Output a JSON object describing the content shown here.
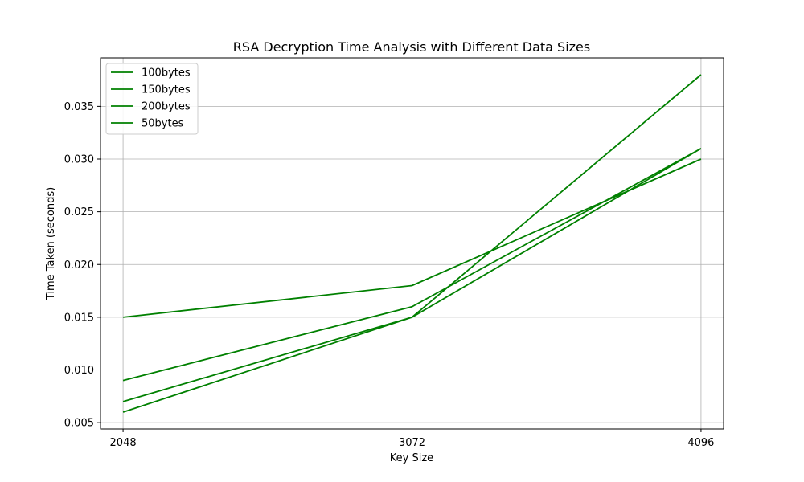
{
  "chart_data": {
    "type": "line",
    "title": "RSA Decryption Time Analysis with Different Data Sizes",
    "xlabel": "Key Size",
    "ylabel": "Time Taken (seconds)",
    "x": [
      2048,
      3072,
      4096
    ],
    "xticks": [
      "2048",
      "3072",
      "4096"
    ],
    "yticks": [
      0.005,
      0.01,
      0.015,
      0.02,
      0.025,
      0.03,
      0.035
    ],
    "ytick_labels": [
      "0.005",
      "0.010",
      "0.015",
      "0.020",
      "0.025",
      "0.030",
      "0.035"
    ],
    "xlim": [
      1968,
      4176
    ],
    "ylim": [
      0.0044,
      0.0396
    ],
    "grid": true,
    "legend_position": "top-left",
    "series": [
      {
        "name": "100bytes",
        "values": [
          0.009,
          0.016,
          0.031
        ],
        "color": "#008000"
      },
      {
        "name": "150bytes",
        "values": [
          0.006,
          0.015,
          0.031
        ],
        "color": "#008000"
      },
      {
        "name": "200bytes",
        "values": [
          0.015,
          0.018,
          0.03
        ],
        "color": "#008000"
      },
      {
        "name": "50bytes",
        "values": [
          0.007,
          0.015,
          0.038
        ],
        "color": "#008000"
      }
    ]
  }
}
